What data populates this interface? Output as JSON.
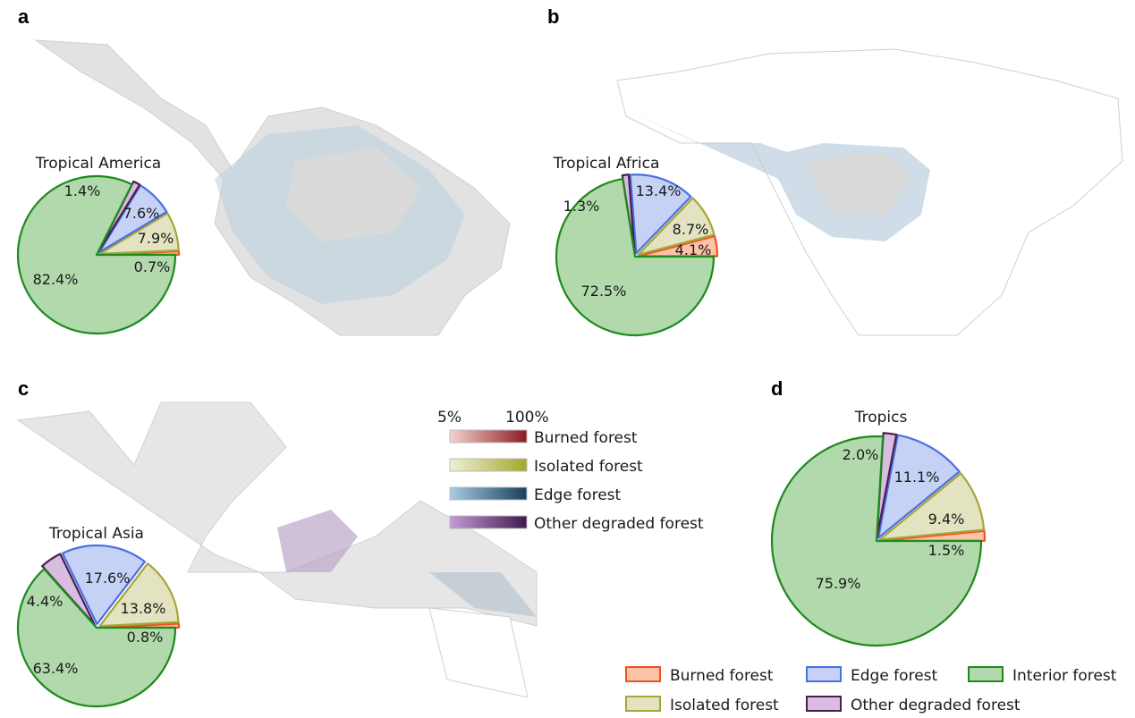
{
  "panel_labels": [
    "a",
    "b",
    "c",
    "d"
  ],
  "map_legend": {
    "scale_min": "5%",
    "scale_max": "100%",
    "items": [
      {
        "label": "Burned forest",
        "from": "#f2d4d0",
        "to": "#8e1b1f"
      },
      {
        "label": "Isolated forest",
        "from": "#eef0d6",
        "to": "#a3a82c"
      },
      {
        "label": "Edge forest",
        "from": "#a9cbe6",
        "to": "#173f5c"
      },
      {
        "label": "Other degraded forest",
        "from": "#c59ad6",
        "to": "#3f1a4e"
      }
    ]
  },
  "pie_legend": [
    {
      "label": "Burned forest",
      "fill": "#fbc3a8",
      "stroke": "#f2521d"
    },
    {
      "label": "Edge forest",
      "fill": "#c6d2f5",
      "stroke": "#4a6fe3"
    },
    {
      "label": "Interior forest",
      "fill": "#b1d9ac",
      "stroke": "#1d8a1d"
    },
    {
      "label": "Isolated forest",
      "fill": "#e3e3c2",
      "stroke": "#a6a53a"
    },
    {
      "label": "Other degraded forest",
      "fill": "#d9bde0",
      "stroke": "#4a1f4f"
    }
  ],
  "chart_data": [
    {
      "type": "pie",
      "panel": "a",
      "title": "Tropical America",
      "categories": [
        "Burned forest",
        "Isolated forest",
        "Edge forest",
        "Other degraded forest",
        "Interior forest"
      ],
      "values": [
        0.7,
        7.9,
        7.6,
        1.4,
        82.4
      ],
      "labels": [
        "0.7%",
        "7.9%",
        "7.6%",
        "1.4%",
        "82.4%"
      ]
    },
    {
      "type": "pie",
      "panel": "b",
      "title": "Tropical Africa",
      "categories": [
        "Burned forest",
        "Isolated forest",
        "Edge forest",
        "Other degraded forest",
        "Interior forest"
      ],
      "values": [
        4.1,
        8.7,
        13.4,
        1.3,
        72.5
      ],
      "labels": [
        "4.1%",
        "8.7%",
        "13.4%",
        "1.3%",
        "72.5%"
      ]
    },
    {
      "type": "pie",
      "panel": "c",
      "title": "Tropical Asia",
      "categories": [
        "Burned forest",
        "Isolated forest",
        "Edge forest",
        "Other degraded forest",
        "Interior forest"
      ],
      "values": [
        0.8,
        13.8,
        17.6,
        4.4,
        63.4
      ],
      "labels": [
        "0.8%",
        "13.8%",
        "17.6%",
        "4.4%",
        "63.4%"
      ]
    },
    {
      "type": "pie",
      "panel": "d",
      "title": "Tropics",
      "categories": [
        "Burned forest",
        "Isolated forest",
        "Edge forest",
        "Other degraded forest",
        "Interior forest"
      ],
      "values": [
        1.5,
        9.4,
        11.1,
        2.0,
        75.9
      ],
      "labels": [
        "1.5%",
        "9.4%",
        "11.1%",
        "2.0%",
        "75.9%"
      ]
    }
  ]
}
